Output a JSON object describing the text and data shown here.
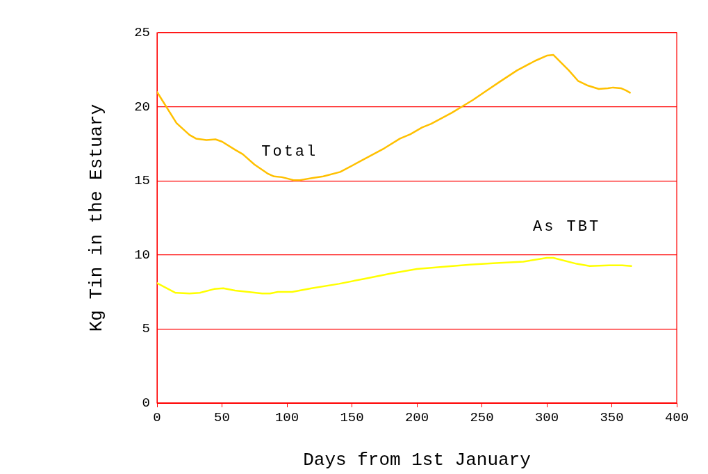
{
  "chart_data": {
    "type": "line",
    "xlabel": "Days from 1st January",
    "ylabel": "Kg Tin in the Estuary",
    "xlim": [
      0,
      400
    ],
    "xticks": [
      0,
      50,
      100,
      150,
      200,
      250,
      300,
      350,
      400
    ],
    "ylim": [
      0,
      25
    ],
    "yticks": [
      0,
      5,
      10,
      15,
      20,
      25
    ],
    "grid": "y",
    "legend": false,
    "marker": "none",
    "series": [
      {
        "name": "Total",
        "color": "#ffc000",
        "x": [
          0,
          15,
          25,
          30,
          38,
          45,
          50,
          60,
          66,
          75,
          85,
          90,
          96,
          105,
          110,
          120,
          128,
          141,
          157,
          175,
          187,
          195,
          204,
          211,
          227,
          243,
          253,
          264,
          277,
          291,
          300,
          305,
          317,
          324,
          331,
          340,
          347,
          351,
          357,
          361,
          364
        ],
        "values": [
          21.0,
          18.9,
          18.1,
          17.85,
          17.75,
          17.8,
          17.65,
          17.1,
          16.8,
          16.1,
          15.5,
          15.3,
          15.25,
          15.05,
          15.05,
          15.2,
          15.3,
          15.6,
          16.35,
          17.2,
          17.85,
          18.15,
          18.6,
          18.85,
          19.6,
          20.45,
          21.05,
          21.7,
          22.45,
          23.1,
          23.45,
          23.5,
          22.45,
          21.75,
          21.45,
          21.2,
          21.25,
          21.3,
          21.25,
          21.1,
          20.95
        ]
      },
      {
        "name": "As TBT",
        "color": "#ffff00",
        "x": [
          0,
          14,
          25,
          33,
          44,
          51,
          60,
          70,
          81,
          87,
          93,
          104,
          119,
          140,
          160,
          180,
          200,
          221,
          241,
          261,
          282,
          300,
          305,
          323,
          333,
          348,
          358,
          365
        ],
        "values": [
          8.1,
          7.45,
          7.4,
          7.45,
          7.7,
          7.75,
          7.6,
          7.5,
          7.4,
          7.4,
          7.5,
          7.5,
          7.75,
          8.05,
          8.4,
          8.75,
          9.05,
          9.2,
          9.35,
          9.45,
          9.55,
          9.8,
          9.8,
          9.4,
          9.25,
          9.3,
          9.3,
          9.25
        ]
      }
    ]
  }
}
